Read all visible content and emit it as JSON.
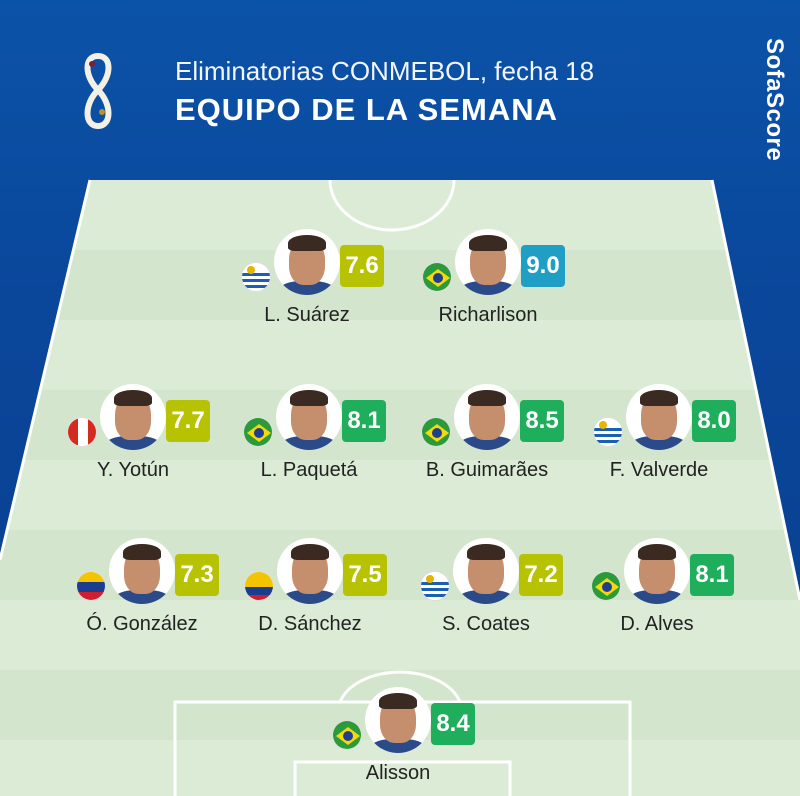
{
  "header": {
    "title": "Eliminatorias CONMEBOL, fecha 18",
    "subtitle": "EQUIPO DE LA  SEMANA",
    "brand": "SofaScore"
  },
  "colors": {
    "background": "#0b4a9c",
    "pitch": "#dcebd6",
    "rating_7": "#b7c203",
    "rating_8": "#1fae5b",
    "rating_9": "#1f9fc6"
  },
  "players": [
    {
      "name": "L. Suárez",
      "rating": "7.6",
      "flag": "uruguay"
    },
    {
      "name": "Richarlison",
      "rating": "9.0",
      "flag": "brazil"
    },
    {
      "name": "Y. Yotún",
      "rating": "7.7",
      "flag": "peru"
    },
    {
      "name": "L. Paquetá",
      "rating": "8.1",
      "flag": "brazil"
    },
    {
      "name": "B. Guimarães",
      "rating": "8.5",
      "flag": "brazil"
    },
    {
      "name": "F. Valverde",
      "rating": "8.0",
      "flag": "uruguay"
    },
    {
      "name": "Ó. González",
      "rating": "7.3",
      "flag": "venezuela"
    },
    {
      "name": "D. Sánchez",
      "rating": "7.5",
      "flag": "colombia"
    },
    {
      "name": "S. Coates",
      "rating": "7.2",
      "flag": "uruguay"
    },
    {
      "name": "D. Alves",
      "rating": "8.1",
      "flag": "brazil"
    },
    {
      "name": "Alisson",
      "rating": "8.4",
      "flag": "brazil"
    }
  ]
}
